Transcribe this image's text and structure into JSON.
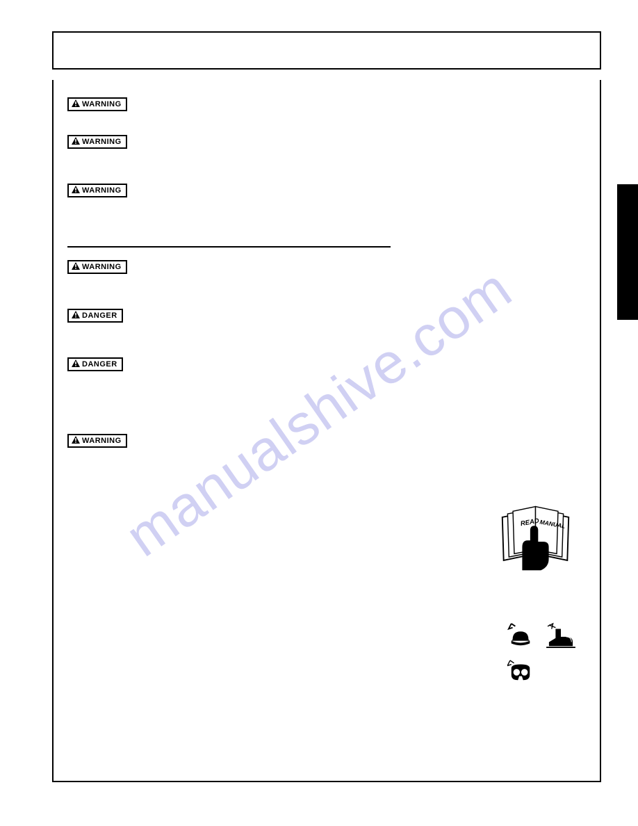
{
  "badges": {
    "warning": "WARNING",
    "danger": "DANGER"
  },
  "rows": [
    {
      "type": "warning",
      "lines": 2,
      "wide": true
    },
    {
      "type": "warning",
      "lines": 3,
      "wide": true
    },
    {
      "type": "warning",
      "lines": 4,
      "wide": true
    },
    {
      "type": "rule"
    },
    {
      "type": "warning",
      "lines": 3,
      "wide": true
    },
    {
      "type": "danger",
      "lines": 3,
      "wide": true
    },
    {
      "type": "danger",
      "lines": 5,
      "wide": false
    },
    {
      "type": "warning",
      "lines": 6,
      "wide": false
    }
  ],
  "icons": {
    "manual": {
      "read": "READ",
      "manual": "MANUAL"
    }
  },
  "watermark": "manualshive.com",
  "footer": {
    "left": "",
    "right": ""
  },
  "colors": {
    "border": "#000000",
    "watermark": "rgba(120,120,220,0.35)"
  }
}
